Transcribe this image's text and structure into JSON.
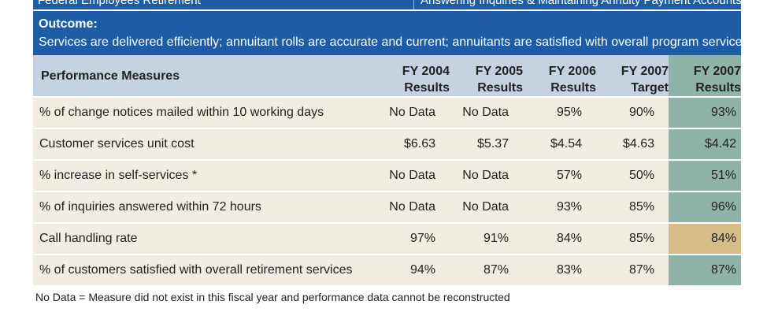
{
  "header": {
    "left": "Federal Employees Retirement",
    "right": "Answering Inquiries & Maintaining Annuity Payment Accounts"
  },
  "outcome": {
    "label": "Outcome:",
    "text": "Services are delivered efficiently; annuitant rolls are accurate and current; annuitants are satisfied with overall program services."
  },
  "table": {
    "columns": [
      {
        "top": "",
        "bottom": "Performance Measures"
      },
      {
        "top": "FY 2004",
        "bottom": "Results"
      },
      {
        "top": "FY 2005",
        "bottom": "Results"
      },
      {
        "top": "FY 2006",
        "bottom": "Results"
      },
      {
        "top": "FY 2007",
        "bottom": "Target"
      },
      {
        "top": "FY 2007",
        "bottom": "Results"
      }
    ],
    "rows": [
      [
        "% of change notices mailed within 10 working days",
        "No Data",
        "No Data",
        "95%",
        "90%",
        "93%"
      ],
      [
        "Customer services unit cost",
        "$6.63",
        "$5.37",
        "$4.54",
        "$4.63",
        "$4.42"
      ],
      [
        "% increase in self-services *",
        "No Data",
        "No Data",
        "57%",
        "50%",
        "51%"
      ],
      [
        "% of inquiries answered within 72 hours",
        "No Data",
        "No Data",
        "93%",
        "85%",
        "96%"
      ],
      [
        "Call handling rate",
        "97%",
        "91%",
        "84%",
        "85%",
        "84%"
      ],
      [
        "% of customers satisfied with overall retirement services",
        "94%",
        "87%",
        "83%",
        "87%",
        "87%"
      ]
    ]
  },
  "colors": {
    "header_blue": "#1e5da6",
    "column_header": "#c6d2e2",
    "row_background": "#f1ede2",
    "results_highlight": "#8fb3a9",
    "missed_target_highlight": "#d6bc87"
  },
  "footnote": "No Data = Measure did not exist in this fiscal year and performance data cannot be reconstructed"
}
